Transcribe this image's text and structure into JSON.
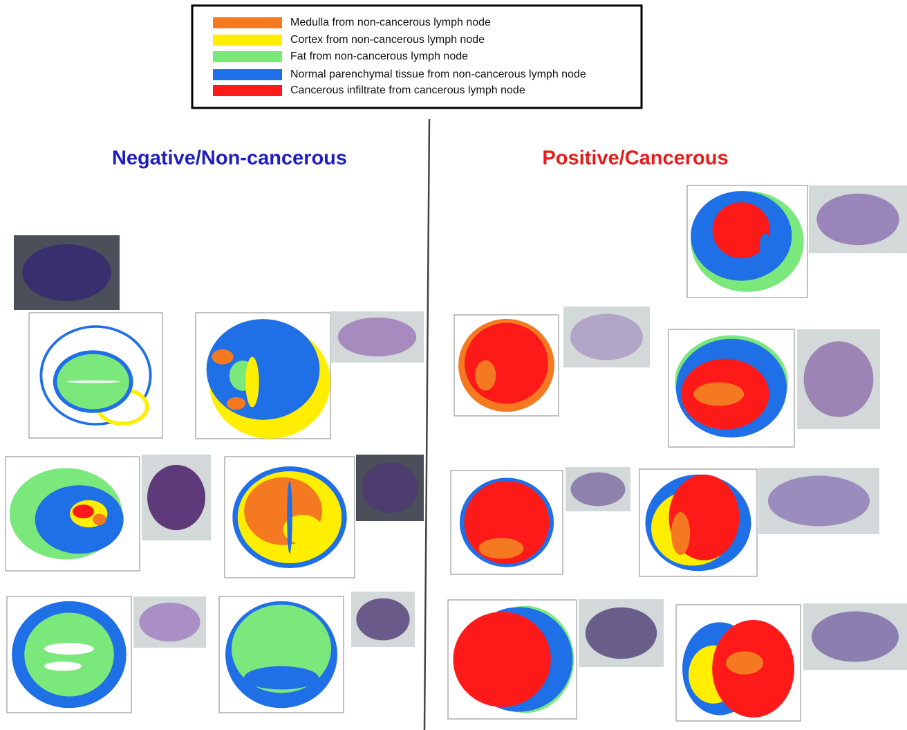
{
  "legend": {
    "items": [
      {
        "label": "Medulla from non-cancerous lymph node",
        "color": "#f47920"
      },
      {
        "label": "Cortex from non-cancerous lymph node",
        "color": "#ffee00"
      },
      {
        "label": "Fat from non-cancerous lymph node",
        "color": "#7be87b"
      },
      {
        "label": "Normal parenchymal tissue from non-cancerous lymph node",
        "color": "#1f6fe6"
      },
      {
        "label": "Cancerous infiltrate from cancerous lymph node",
        "color": "#ff1a1a"
      }
    ]
  },
  "negative": {
    "title": "Negative/Non-cancerous",
    "color": "#1f1fbf"
  },
  "positive": {
    "title": "Positive/Cancerous",
    "color": "#e81c1c"
  }
}
